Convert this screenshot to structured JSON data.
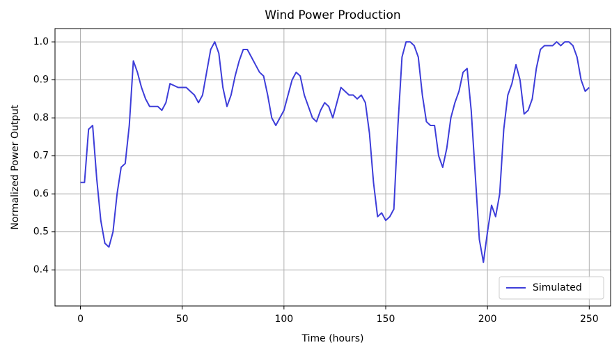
{
  "chart_data": {
    "type": "line",
    "title": "Wind Power Production",
    "xlabel": "Time (hours)",
    "ylabel": "Normalized Power Output",
    "x": [
      0,
      2,
      4,
      6,
      8,
      10,
      12,
      14,
      16,
      18,
      20,
      22,
      24,
      26,
      28,
      30,
      32,
      34,
      36,
      38,
      40,
      42,
      44,
      46,
      48,
      50,
      52,
      54,
      56,
      58,
      60,
      62,
      64,
      66,
      68,
      70,
      72,
      74,
      76,
      78,
      80,
      82,
      84,
      86,
      88,
      90,
      92,
      94,
      96,
      98,
      100,
      102,
      104,
      106,
      108,
      110,
      112,
      114,
      116,
      118,
      120,
      122,
      124,
      126,
      128,
      130,
      132,
      134,
      136,
      138,
      140,
      142,
      144,
      146,
      148,
      150,
      152,
      154,
      156,
      158,
      160,
      162,
      164,
      166,
      168,
      170,
      172,
      174,
      176,
      178,
      180,
      182,
      184,
      186,
      188,
      190,
      192,
      194,
      196,
      198,
      200,
      202,
      204,
      206,
      208,
      210,
      212,
      214,
      216,
      218,
      220,
      222,
      224,
      226,
      228,
      230,
      232,
      234,
      236,
      238,
      240,
      242,
      244,
      246,
      248,
      250
    ],
    "series": [
      {
        "name": "Simulated",
        "color": "#3d3dd9",
        "values": [
          0.63,
          0.63,
          0.77,
          0.78,
          0.64,
          0.53,
          0.47,
          0.46,
          0.5,
          0.6,
          0.67,
          0.68,
          0.78,
          0.95,
          0.92,
          0.88,
          0.85,
          0.83,
          0.83,
          0.83,
          0.82,
          0.84,
          0.89,
          0.885,
          0.88,
          0.88,
          0.88,
          0.87,
          0.86,
          0.84,
          0.86,
          0.92,
          0.98,
          1.0,
          0.97,
          0.88,
          0.83,
          0.86,
          0.91,
          0.95,
          0.98,
          0.98,
          0.96,
          0.94,
          0.92,
          0.91,
          0.86,
          0.8,
          0.78,
          0.8,
          0.82,
          0.86,
          0.9,
          0.92,
          0.91,
          0.86,
          0.83,
          0.8,
          0.79,
          0.82,
          0.84,
          0.83,
          0.8,
          0.84,
          0.88,
          0.87,
          0.86,
          0.86,
          0.85,
          0.86,
          0.84,
          0.76,
          0.63,
          0.54,
          0.55,
          0.53,
          0.54,
          0.56,
          0.78,
          0.96,
          1.0,
          1.0,
          0.99,
          0.96,
          0.86,
          0.79,
          0.78,
          0.78,
          0.7,
          0.67,
          0.72,
          0.8,
          0.84,
          0.87,
          0.92,
          0.93,
          0.82,
          0.65,
          0.48,
          0.42,
          0.5,
          0.57,
          0.54,
          0.6,
          0.77,
          0.86,
          0.89,
          0.94,
          0.9,
          0.81,
          0.82,
          0.85,
          0.93,
          0.98,
          0.99,
          0.99,
          0.99,
          1.0,
          0.99,
          1.0,
          1.0,
          0.99,
          0.96,
          0.9,
          0.87,
          0.88
        ]
      }
    ],
    "xlim": [
      -12.5,
      260.5
    ],
    "ylim": [
      0.305,
      1.035
    ],
    "xticks": [
      0,
      50,
      100,
      150,
      200,
      250
    ],
    "yticks": [
      0.4,
      0.5,
      0.6,
      0.7,
      0.8,
      0.9,
      {
        "value": 1,
        "label": "1.0"
      }
    ],
    "grid": true,
    "legend": "lower right"
  }
}
